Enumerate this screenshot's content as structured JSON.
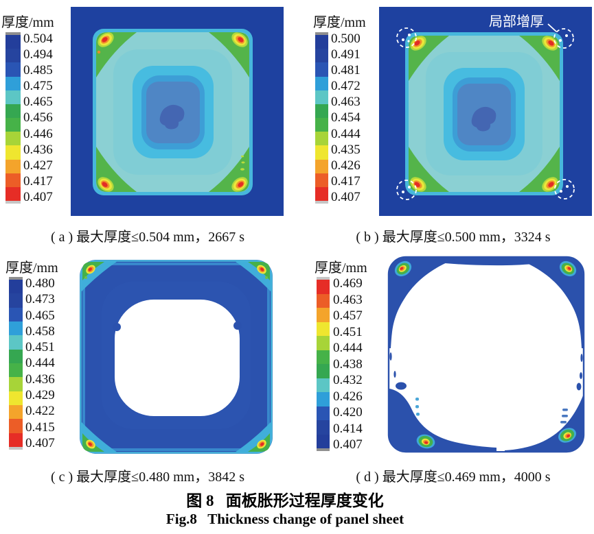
{
  "figure": {
    "caption_zh": "图 8   面板胀形过程厚度变化",
    "caption_en": "Fig.8   Thickness change of panel sheet"
  },
  "colormap": {
    "colors": [
      "#8f8f8f",
      "#233e9b",
      "#26449f",
      "#2a55b4",
      "#2f9fd9",
      "#5cc6c5",
      "#35a751",
      "#46b248",
      "#a7d438",
      "#efe62f",
      "#f4a42b",
      "#ec5d27",
      "#e62d26",
      "#c6c6c6"
    ]
  },
  "panels": [
    {
      "id": "a",
      "legend_title": "厚度/mm",
      "reversed": false,
      "ticks": [
        "0.504",
        "0.494",
        "0.485",
        "0.475",
        "0.465",
        "0.456",
        "0.446",
        "0.436",
        "0.427",
        "0.417",
        "0.407"
      ],
      "caption": "( a ) 最大厚度≤0.504 mm，2667 s"
    },
    {
      "id": "b",
      "legend_title": "厚度/mm",
      "reversed": false,
      "ticks": [
        "0.500",
        "0.491",
        "0.481",
        "0.472",
        "0.463",
        "0.454",
        "0.444",
        "0.435",
        "0.426",
        "0.417",
        "0.407"
      ],
      "caption": "( b ) 最大厚度≤0.500 mm，3324 s",
      "annotation": "局部增厚"
    },
    {
      "id": "c",
      "legend_title": "厚度/mm",
      "reversed": false,
      "ticks": [
        "0.480",
        "0.473",
        "0.465",
        "0.458",
        "0.451",
        "0.444",
        "0.436",
        "0.429",
        "0.422",
        "0.415",
        "0.407"
      ],
      "caption": "( c ) 最大厚度≤0.480 mm，3842 s"
    },
    {
      "id": "d",
      "legend_title": "厚度/mm",
      "reversed": true,
      "ticks": [
        "0.469",
        "0.463",
        "0.457",
        "0.451",
        "0.444",
        "0.438",
        "0.432",
        "0.426",
        "0.420",
        "0.414",
        "0.407"
      ],
      "caption": "( d ) 最大厚度≤0.469 mm，4000 s"
    }
  ]
}
